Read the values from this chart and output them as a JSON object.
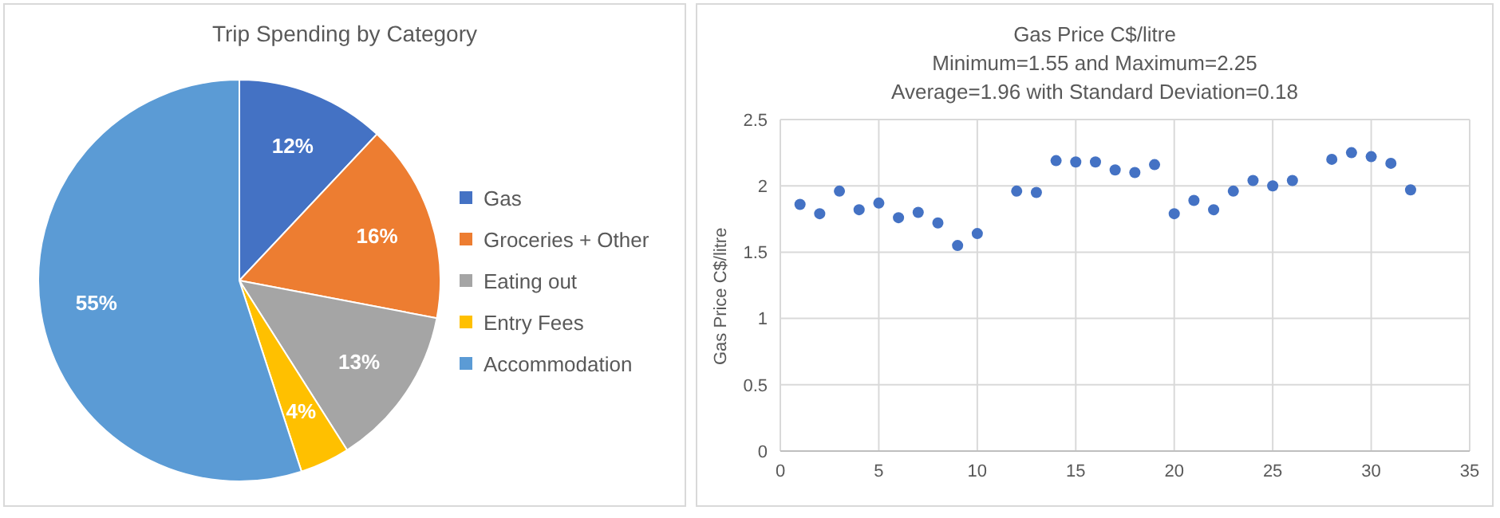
{
  "chart_data": [
    {
      "type": "pie",
      "title": "Trip Spending by Category",
      "categories": [
        "Gas",
        "Groceries + Other",
        "Eating out",
        "Entry Fees",
        "Accommodation"
      ],
      "values": [
        12,
        16,
        13,
        4,
        55
      ],
      "colors": [
        "#4472c4",
        "#ed7d31",
        "#a5a5a5",
        "#ffc000",
        "#5b9bd5"
      ],
      "value_labels": [
        "12%",
        "16%",
        "13%",
        "4%",
        "55%"
      ],
      "legend": "right"
    },
    {
      "type": "scatter",
      "title": "Gas Price C$/litre",
      "subtitle": "Minimum=1.55 and Maximum=2.25",
      "annotations": [
        "Average=1.96 with Standard Deviation=0.18"
      ],
      "ylabel": "Gas Price C$/litre",
      "x": [
        1,
        2,
        3,
        4,
        5,
        6,
        7,
        8,
        9,
        10,
        12,
        13,
        14,
        15,
        16,
        17,
        18,
        19,
        20,
        21,
        22,
        23,
        24,
        25,
        26,
        28,
        29,
        30,
        31,
        32
      ],
      "series": [
        {
          "color": "#4472c4",
          "values": [
            1.86,
            1.79,
            1.96,
            1.82,
            1.87,
            1.76,
            1.8,
            1.72,
            1.55,
            1.64,
            1.96,
            1.95,
            2.19,
            2.18,
            2.18,
            2.12,
            2.1,
            2.16,
            1.79,
            1.89,
            1.82,
            1.96,
            2.04,
            2.0,
            2.04,
            2.2,
            2.25,
            2.22,
            2.17,
            1.97
          ]
        }
      ],
      "xlim": [
        0,
        35
      ],
      "xticks": [
        0,
        5,
        10,
        15,
        20,
        25,
        30,
        35
      ],
      "ylim": [
        0,
        2.5
      ],
      "yticks": [
        0,
        0.5,
        1,
        1.5,
        2,
        2.5
      ],
      "grid": true,
      "marker": "circle"
    }
  ]
}
